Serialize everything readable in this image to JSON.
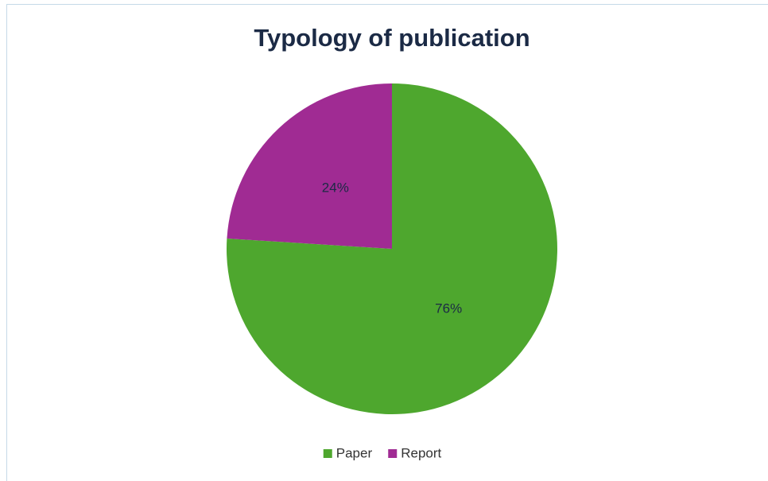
{
  "chart_data": {
    "type": "pie",
    "title": "Typology of publication",
    "categories": [
      "Paper",
      "Report"
    ],
    "values": [
      76,
      24
    ],
    "value_labels": [
      "76%",
      "24%"
    ],
    "colors": [
      "#4ea72e",
      "#a02b93"
    ],
    "legend": "bottom"
  }
}
